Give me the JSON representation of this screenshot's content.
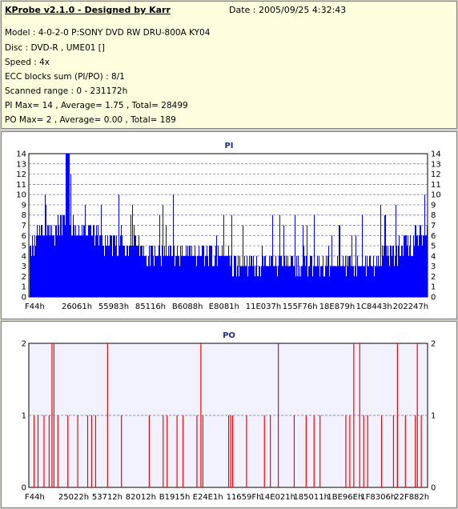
{
  "header": {
    "title": "KProbe v2.1.0 - Designed by Karr",
    "date": "Date : 2005/09/25 4:32:43",
    "lines": [
      "Model : 4-0-2-0 P:SONY    DVD RW DRU-800A  KY04",
      "Disc : DVD-R , UME01 []",
      "Speed : 4x",
      "ECC blocks sum (PI/PO) : 8/1",
      "Scanned range : 0 - 231172h",
      "PI Max= 14 , Average= 1.75 , Total= 28499",
      "PO Max= 2 , Average= 0.00 , Total= 189"
    ]
  },
  "chart_data": [
    {
      "type": "bar",
      "title": "PI",
      "color": "#0000ff",
      "ylim": [
        0,
        14
      ],
      "yticks": [
        "0",
        "1",
        "2",
        "3",
        "4",
        "5",
        "6",
        "7",
        "8",
        "9",
        "10",
        "11",
        "12",
        "13",
        "14"
      ],
      "xticks": [
        "F44h",
        "26061h",
        "55983h",
        "85116h",
        "B6088h",
        "E8081h",
        "11E037h",
        "155F76h",
        "18E879h",
        "1C8443h",
        "202247h"
      ],
      "grid": true,
      "envelope": {
        "x": [
          0,
          0.02,
          0.05,
          0.08,
          0.1,
          0.13,
          0.16,
          0.2,
          0.25,
          0.3,
          0.35,
          0.4,
          0.45,
          0.5,
          0.55,
          0.6,
          0.65,
          0.7,
          0.75,
          0.8,
          0.84,
          0.88,
          0.92,
          0.95,
          0.98,
          1.0
        ],
        "y": [
          4,
          6,
          6,
          7,
          7,
          6,
          6,
          5,
          5,
          4,
          4,
          4,
          4,
          3.5,
          3,
          3,
          3,
          3,
          3,
          3,
          3,
          3.5,
          4,
          5,
          6,
          6
        ]
      }
    },
    {
      "type": "bar",
      "title": "PO",
      "color": "#ff0000",
      "ylim": [
        0,
        2
      ],
      "yticks": [
        "0",
        "1",
        "2"
      ],
      "xticks": [
        "F44h",
        "25022h",
        "53712h",
        "82012h",
        "B1915h",
        "E24E1h",
        "11659Fh",
        "14E021h",
        "185011h",
        "1BE96Eh",
        "1F8306h",
        "22F882h"
      ],
      "grid": true
    }
  ]
}
